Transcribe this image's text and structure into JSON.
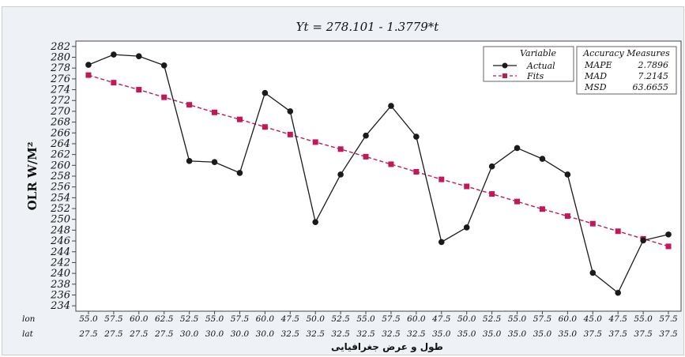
{
  "chart_data": {
    "type": "line",
    "title": "Yt = 278.101 - 1.3779*t",
    "ylabel": "OLR W/M²",
    "xlabel": "طول و عرض جغرافیایی",
    "x_row_labels": [
      "lon",
      "lat"
    ],
    "lon": [
      "55.0",
      "57.5",
      "60.0",
      "62.5",
      "52.5",
      "55.0",
      "57.5",
      "60.0",
      "47.5",
      "50.0",
      "52.5",
      "55.0",
      "57.5",
      "60.0",
      "47.5",
      "50.0",
      "52.5",
      "55.0",
      "57.5",
      "60.0",
      "45.0",
      "47.5",
      "55.0",
      "57.5"
    ],
    "lat": [
      "27.5",
      "27.5",
      "27.5",
      "27.5",
      "30.0",
      "30.0",
      "30.0",
      "30.0",
      "32.5",
      "32.5",
      "32.5",
      "32.5",
      "32.5",
      "32.5",
      "35.0",
      "35.0",
      "35.0",
      "35.0",
      "35.0",
      "35.0",
      "37.5",
      "37.5",
      "37.5",
      "37.5"
    ],
    "ylim": [
      233,
      283
    ],
    "yticks": [
      234,
      236,
      238,
      240,
      242,
      244,
      246,
      248,
      250,
      252,
      254,
      256,
      258,
      260,
      262,
      264,
      266,
      268,
      270,
      272,
      274,
      276,
      278,
      280,
      282
    ],
    "grid": false,
    "series": [
      {
        "name": "Actual",
        "color": "#1a1a1a",
        "marker": "circle",
        "values": [
          278.6,
          280.5,
          280.2,
          278.5,
          260.8,
          260.6,
          258.6,
          273.4,
          270.0,
          249.5,
          258.3,
          265.5,
          271.0,
          265.3,
          245.8,
          248.5,
          259.8,
          263.2,
          261.2,
          258.3,
          240.1,
          236.4,
          246.1,
          247.2
        ]
      },
      {
        "name": "Fits",
        "color": "#c2185b",
        "marker": "square",
        "values": [
          276.7,
          275.3,
          274.0,
          272.6,
          271.2,
          269.8,
          268.5,
          267.1,
          265.7,
          264.3,
          263.0,
          261.6,
          260.2,
          258.8,
          257.4,
          256.1,
          254.7,
          253.3,
          251.9,
          250.6,
          249.2,
          247.8,
          246.4,
          245.0
        ]
      }
    ],
    "legend": {
      "title": "Variable",
      "position": "top-right"
    },
    "accuracy_measures": {
      "title": "Accuracy Measures",
      "rows": [
        {
          "label": "MAPE",
          "value": "2.7896"
        },
        {
          "label": "MAD",
          "value": "7.2145"
        },
        {
          "label": "MSD",
          "value": "63.6655"
        }
      ]
    }
  }
}
